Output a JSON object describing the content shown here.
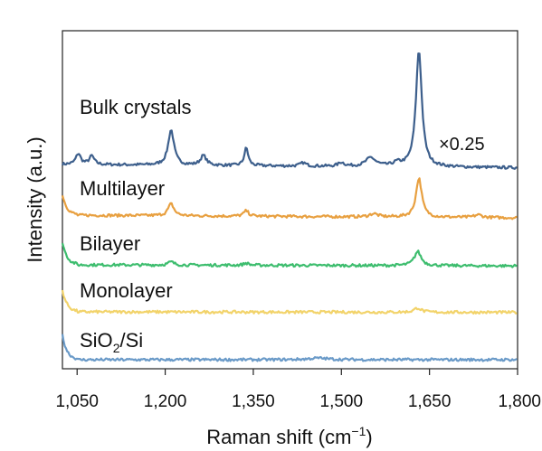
{
  "chart_data": {
    "type": "line",
    "xlabel": "Raman shift (cm",
    "xlabel_sup": "−1",
    "xlabel_end": ")",
    "ylabel": "Intensity (a.u.)",
    "xlim": [
      1025,
      1800
    ],
    "xticks": [
      1050,
      1200,
      1350,
      1500,
      1650,
      1800
    ],
    "xtick_labels": [
      "1,050",
      "1,200",
      "1,350",
      "1,500",
      "1,650",
      "1,800"
    ],
    "annotation": "×0.25",
    "series": [
      {
        "name": "Bulk crystals",
        "color": "#3d5f8c",
        "baseline": 0,
        "peaks": [
          [
            1052,
            0.2,
            5
          ],
          [
            1075,
            0.16,
            5
          ],
          [
            1210,
            0.65,
            6
          ],
          [
            1265,
            0.18,
            6
          ],
          [
            1338,
            0.33,
            4
          ],
          [
            1435,
            0.06,
            6
          ],
          [
            1500,
            0.07,
            6
          ],
          [
            1550,
            0.16,
            10
          ],
          [
            1595,
            0.06,
            8
          ],
          [
            1632,
            2.15,
            6
          ]
        ],
        "tail_slope": -0.06
      },
      {
        "name": "Multilayer",
        "color": "#e8a040",
        "baseline": 1.1,
        "peaks": [
          [
            1210,
            0.22,
            6
          ],
          [
            1338,
            0.1,
            5
          ],
          [
            1555,
            0.06,
            8
          ],
          [
            1632,
            0.72,
            6
          ],
          [
            1733,
            0.05,
            8
          ]
        ],
        "tail_slope": -0.05,
        "start_spike": 0.38
      },
      {
        "name": "Bilayer",
        "color": "#3dbd6e",
        "baseline": 2.3,
        "peaks": [
          [
            1210,
            0.06,
            6
          ],
          [
            1338,
            0.04,
            5
          ],
          [
            1630,
            0.26,
            7
          ]
        ],
        "tail_slope": -0.02,
        "start_spike": 0.42
      },
      {
        "name": "Monolayer",
        "color": "#f2d36a",
        "baseline": 3.32,
        "peaks": [
          [
            1630,
            0.08,
            7
          ]
        ],
        "tail_slope": -0.01,
        "start_spike": 0.4
      },
      {
        "name": "SiO",
        "name_sub": "2",
        "name_end": "/Si",
        "color": "#6a9ac8",
        "baseline": 4.3,
        "peaks": [
          [
            1460,
            0.03,
            20
          ]
        ],
        "tail_slope": 0,
        "start_spike": 0.45
      }
    ]
  }
}
